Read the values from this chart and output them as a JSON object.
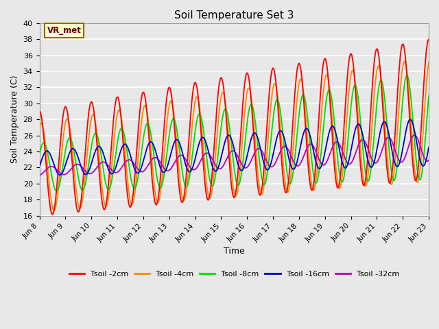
{
  "title": "Soil Temperature Set 3",
  "xlabel": "Time",
  "ylabel": "Soil Temperature (C)",
  "ylim": [
    16,
    40
  ],
  "yticks": [
    16,
    18,
    20,
    22,
    24,
    26,
    28,
    30,
    32,
    34,
    36,
    38,
    40
  ],
  "colors": {
    "Tsoil -2cm": "#ff0000",
    "Tsoil -4cm": "#ff8800",
    "Tsoil -8cm": "#00dd00",
    "Tsoil -16cm": "#0000cc",
    "Tsoil -32cm": "#bb00bb"
  },
  "annotation_text": "VR_met",
  "annotation_bg": "#ffffcc",
  "annotation_border": "#996600",
  "plot_bg": "#e8e8e8",
  "start_day": 8,
  "xtick_labels": [
    "Jun 8",
    "Jun 9",
    "Jun 10",
    "Jun 11",
    "Jun 12",
    "Jun 13",
    "Jun 14",
    "Jun 15",
    "Jun 16",
    "Jun 17",
    "Jun 18",
    "Jun 19",
    "Jun 20",
    "Jun 21",
    "Jun 22",
    "Jun 23"
  ]
}
